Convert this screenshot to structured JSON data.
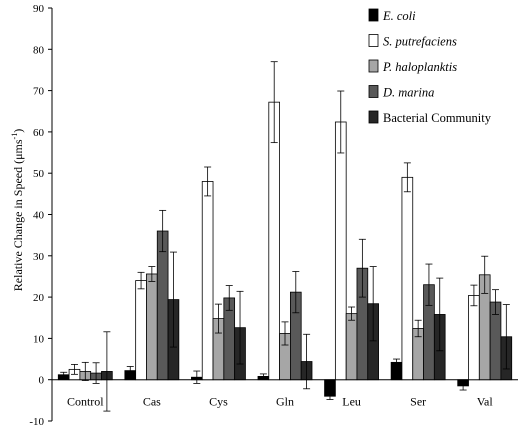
{
  "chart_data": {
    "type": "bar",
    "title": "",
    "xlabel": "",
    "ylabel": "Relative Change in Speed (μms",
    "ylabel_superscript": "-1",
    "ylabel_close": ")",
    "ylim": [
      -10,
      90
    ],
    "yticks": [
      -10,
      0,
      10,
      20,
      30,
      40,
      50,
      60,
      70,
      80,
      90
    ],
    "grid": false,
    "legend_position": "top-right",
    "categories": [
      "Control",
      "Cas",
      "Cys",
      "Gln",
      "Leu",
      "Ser",
      "Val"
    ],
    "series": [
      {
        "name": "E. coli",
        "italic": true,
        "color": "#000000",
        "values": [
          1.2,
          2.2,
          0.6,
          0.8,
          -4.0,
          4.2,
          -1.5
        ],
        "errors": [
          0.6,
          1.0,
          1.5,
          0.6,
          0.8,
          0.8,
          1.0
        ]
      },
      {
        "name": "S. putrefaciens",
        "italic": true,
        "color": "#ffffff",
        "values": [
          2.5,
          24.0,
          48.0,
          67.2,
          62.4,
          49.0,
          20.4
        ],
        "errors": [
          1.2,
          2.0,
          3.5,
          9.8,
          7.5,
          3.5,
          2.5
        ]
      },
      {
        "name": "P. haloplanktis",
        "italic": true,
        "color": "#a6a6a6",
        "values": [
          2.0,
          25.6,
          14.8,
          11.2,
          16.0,
          12.4,
          25.4
        ],
        "errors": [
          2.2,
          1.8,
          3.5,
          2.8,
          1.6,
          2.0,
          4.5
        ]
      },
      {
        "name": "D. marina",
        "italic": true,
        "color": "#595959",
        "values": [
          1.6,
          36.0,
          19.8,
          21.2,
          27.0,
          23.0,
          18.8
        ],
        "errors": [
          2.5,
          5.0,
          3.0,
          5.0,
          7.0,
          5.0,
          3.0
        ]
      },
      {
        "name": "Bacterial Community",
        "italic": false,
        "color": "#262626",
        "values": [
          2.0,
          19.4,
          12.6,
          4.4,
          18.4,
          15.8,
          10.4
        ],
        "errors": [
          9.6,
          11.5,
          8.8,
          6.6,
          9.0,
          8.8,
          7.8
        ]
      }
    ]
  }
}
